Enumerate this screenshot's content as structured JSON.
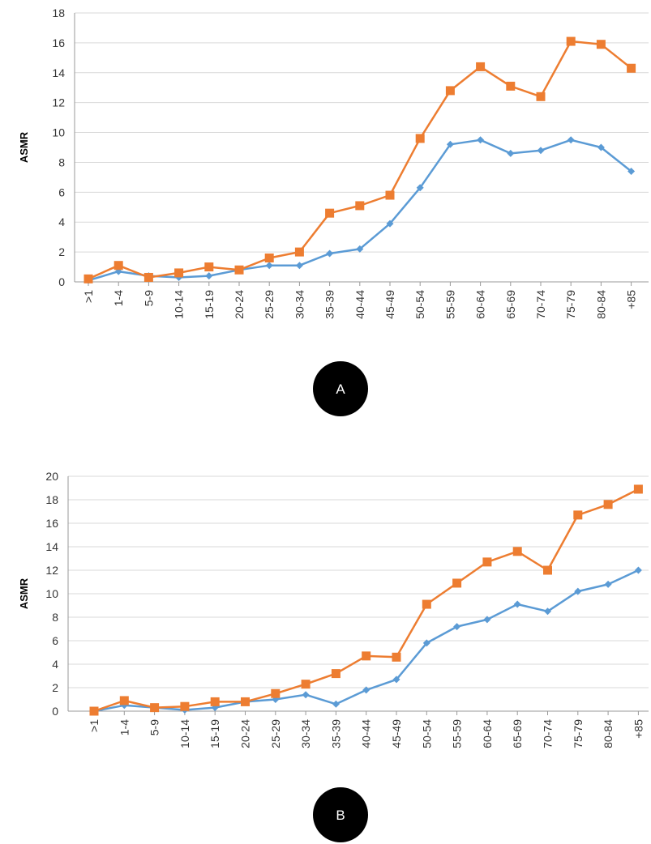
{
  "chart_data": [
    {
      "type": "line",
      "panel_label": "A",
      "ylabel": "ASMR",
      "ylim": [
        0,
        18
      ],
      "ytick_step": 2,
      "grid": true,
      "categories": [
        ">1",
        "1-4",
        "5-9",
        "10-14",
        "15-19",
        "20-24",
        "25-29",
        "30-34",
        "35-39",
        "40-44",
        "45-49",
        "50-54",
        "55-59",
        "60-64",
        "65-69",
        "70-74",
        "75-79",
        "80-84",
        "+85"
      ],
      "series": [
        {
          "color": "#ED7D31",
          "marker": "square",
          "values": [
            0.2,
            1.1,
            0.3,
            0.6,
            1.0,
            0.8,
            1.6,
            2.0,
            4.6,
            5.1,
            5.8,
            9.6,
            12.8,
            14.4,
            13.1,
            12.4,
            16.1,
            15.9,
            14.3
          ]
        },
        {
          "color": "#5B9BD5",
          "marker": "diamond",
          "values": [
            0.1,
            0.7,
            0.4,
            0.3,
            0.4,
            0.8,
            1.1,
            1.1,
            1.9,
            2.2,
            3.9,
            6.3,
            9.2,
            9.5,
            8.6,
            8.8,
            9.5,
            9.0,
            7.4
          ]
        }
      ]
    },
    {
      "type": "line",
      "panel_label": "B",
      "ylabel": "ASMR",
      "ylim": [
        0,
        20
      ],
      "ytick_step": 2,
      "grid": true,
      "categories": [
        ">1",
        "1-4",
        "5-9",
        "10-14",
        "15-19",
        "20-24",
        "25-29",
        "30-34",
        "35-39",
        "40-44",
        "45-49",
        "50-54",
        "55-59",
        "60-64",
        "65-69",
        "70-74",
        "75-79",
        "80-84",
        "+85"
      ],
      "series": [
        {
          "color": "#ED7D31",
          "marker": "square",
          "values": [
            0.0,
            0.9,
            0.3,
            0.4,
            0.8,
            0.8,
            1.5,
            2.3,
            3.2,
            4.7,
            4.6,
            9.1,
            10.9,
            12.7,
            13.6,
            12.0,
            16.7,
            17.6,
            18.9
          ]
        },
        {
          "color": "#5B9BD5",
          "marker": "diamond",
          "values": [
            0.0,
            0.5,
            0.3,
            0.1,
            0.3,
            0.8,
            1.0,
            1.4,
            0.6,
            1.8,
            2.7,
            5.8,
            7.2,
            7.8,
            9.1,
            8.5,
            10.2,
            10.8,
            12.0
          ]
        }
      ]
    }
  ]
}
